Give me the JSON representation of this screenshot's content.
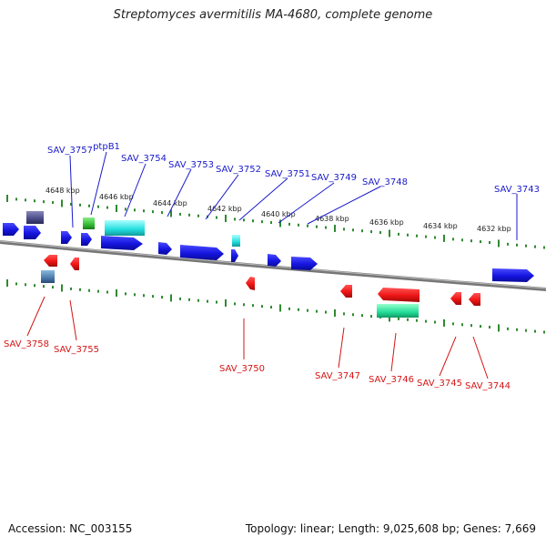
{
  "title": "Streptomyces avermitilis MA-4680, complete genome",
  "footer": {
    "accession": "Accession: NC_003155",
    "summary": "Topology: linear; Length: 9,025,608 bp; Genes: 7,669"
  },
  "colors": {
    "forward": "#1515e0",
    "reverse": "#ee1515",
    "forward_label": "#1a1acc",
    "reverse_label": "#d51515",
    "axis": "#8a8a8a",
    "ticks": "#2f8a2f",
    "cyan": "#22dddd",
    "green": "#33bb33",
    "purple": "#4a4a88",
    "steel": "#4a7aaa",
    "teal": "#22dd99"
  },
  "scale_ticks": [
    {
      "label": "4648 kbp"
    },
    {
      "label": "4646 kbp"
    },
    {
      "label": "4644 kbp"
    },
    {
      "label": "4642 kbp"
    },
    {
      "label": "4640 kbp"
    },
    {
      "label": "4638 kbp"
    },
    {
      "label": "4636 kbp"
    },
    {
      "label": "4634 kbp"
    },
    {
      "label": "4632 kbp"
    }
  ],
  "forward_labels": [
    {
      "name": "SAV_3757"
    },
    {
      "name": "ptpB1"
    },
    {
      "name": "SAV_3754"
    },
    {
      "name": "SAV_3753"
    },
    {
      "name": "SAV_3752"
    },
    {
      "name": "SAV_3751"
    },
    {
      "name": "SAV_3749"
    },
    {
      "name": "SAV_3748"
    },
    {
      "name": "SAV_3743"
    }
  ],
  "reverse_labels": [
    {
      "name": "SAV_3758"
    },
    {
      "name": "SAV_3755"
    },
    {
      "name": "SAV_3750"
    },
    {
      "name": "SAV_3747"
    },
    {
      "name": "SAV_3746"
    },
    {
      "name": "SAV_3745"
    },
    {
      "name": "SAV_3744"
    }
  ]
}
